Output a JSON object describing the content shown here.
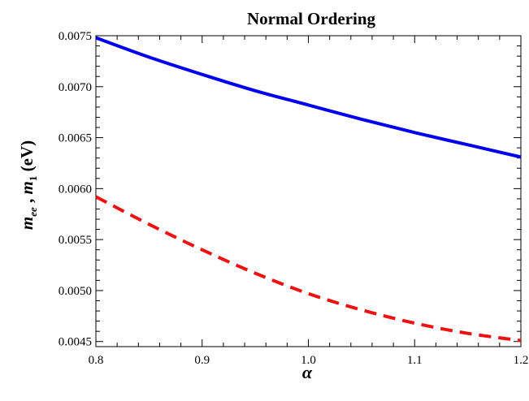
{
  "chart_data": {
    "type": "line",
    "title": "Normal Ordering",
    "xlabel": "α",
    "ylabel": {
      "part1_main": "m",
      "part1_sub": "ee",
      "separator": " , ",
      "part2_main": "m",
      "part2_sub": "1",
      "unit": " (eV)"
    },
    "xlim": [
      0.8,
      1.2
    ],
    "ylim": [
      0.00445,
      0.0075
    ],
    "x_ticks": [
      0.8,
      0.9,
      1.0,
      1.1,
      1.2
    ],
    "x_tick_labels": [
      "0.8",
      "0.9",
      "1.0",
      "1.1",
      "1.2"
    ],
    "y_ticks": [
      0.0045,
      0.005,
      0.0055,
      0.006,
      0.0065,
      0.007,
      0.0075
    ],
    "y_tick_labels": [
      "0.0045",
      "0.0050",
      "0.0055",
      "0.0060",
      "0.0065",
      "0.0070",
      "0.0075"
    ],
    "grid": false,
    "series": [
      {
        "style": "solid",
        "color": "#0000ee",
        "x": [
          0.8,
          0.85,
          0.9,
          0.95,
          1.0,
          1.05,
          1.1,
          1.15,
          1.2
        ],
        "y": [
          0.00748,
          0.00729,
          0.00712,
          0.00696,
          0.00682,
          0.00668,
          0.00655,
          0.00643,
          0.00631
        ]
      },
      {
        "style": "dashed",
        "color": "#ee1111",
        "x": [
          0.8,
          0.85,
          0.9,
          0.95,
          1.0,
          1.05,
          1.1,
          1.15,
          1.2
        ],
        "y": [
          0.00592,
          0.00565,
          0.0054,
          0.00517,
          0.00497,
          0.00481,
          0.00468,
          0.00458,
          0.00451
        ]
      }
    ]
  }
}
